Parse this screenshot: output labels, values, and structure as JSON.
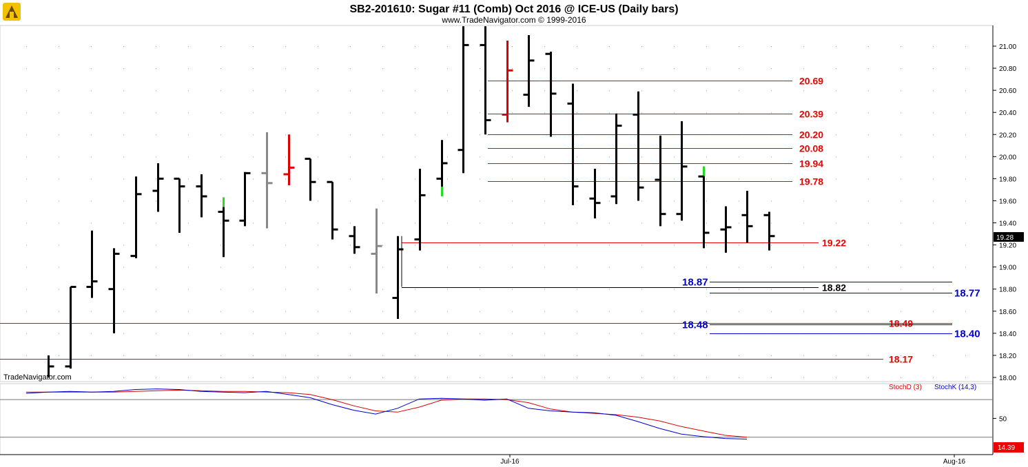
{
  "chart_data": {
    "type": "bar",
    "subtype": "ohlc",
    "title": "SB2-201610:  Sugar #11 (Comb) Oct 2016 @ ICE-US  (Daily bars)",
    "subtitle": "www.TradeNavigator.com © 1999-2016",
    "watermark": "TradeNavigator.com",
    "ylim": [
      18.0,
      21.15
    ],
    "y_ticks": [
      "21.00",
      "20.80",
      "20.60",
      "20.40",
      "20.20",
      "20.00",
      "19.80",
      "19.60",
      "19.40",
      "19.20",
      "19.00",
      "18.80",
      "18.60",
      "18.40",
      "18.20",
      "18.00"
    ],
    "x_ticks": [
      "Jul-16",
      "Aug-16"
    ],
    "last_price": "19.28",
    "grid": true,
    "bars": [
      {
        "o": null,
        "h": 18.2,
        "l": 18.0,
        "c": 18.1,
        "color": "#000000"
      },
      {
        "o": 18.1,
        "h": 18.82,
        "l": 18.08,
        "c": 18.82,
        "color": "#000000"
      },
      {
        "o": 18.82,
        "h": 19.33,
        "l": 18.72,
        "c": 18.87,
        "color": "#000000"
      },
      {
        "o": 18.8,
        "h": 19.17,
        "l": 18.4,
        "c": 19.12,
        "color": "#000000"
      },
      {
        "o": 19.1,
        "h": 19.82,
        "l": 19.08,
        "c": 19.66,
        "color": "#000000"
      },
      {
        "o": 19.69,
        "h": 19.94,
        "l": 19.5,
        "c": 19.8,
        "color": "#000000"
      },
      {
        "o": 19.8,
        "h": 19.8,
        "l": 19.31,
        "c": 19.73,
        "color": "#000000"
      },
      {
        "o": 19.73,
        "h": 19.84,
        "l": 19.45,
        "c": 19.64,
        "color": "#000000"
      },
      {
        "o": 19.5,
        "h": 19.63,
        "l": 19.09,
        "c": 19.42,
        "color": "#000000",
        "top_color": "#22dd22"
      },
      {
        "o": 19.42,
        "h": 19.86,
        "l": 19.37,
        "c": 19.85,
        "color": "#000000"
      },
      {
        "o": 19.85,
        "h": 20.22,
        "l": 19.35,
        "c": 19.76,
        "color": "#888888"
      },
      {
        "o": 19.84,
        "h": 20.2,
        "l": 19.74,
        "c": 19.9,
        "color": "#dd0000"
      },
      {
        "o": 19.98,
        "h": 19.98,
        "l": 19.6,
        "c": 19.77,
        "color": "#000000"
      },
      {
        "o": 19.77,
        "h": 19.77,
        "l": 19.25,
        "c": 19.34,
        "color": "#000000"
      },
      {
        "o": 19.28,
        "h": 19.37,
        "l": 19.12,
        "c": 19.18,
        "color": "#000000"
      },
      {
        "o": 19.12,
        "h": 19.53,
        "l": 18.76,
        "c": 19.19,
        "color": "#888888"
      },
      {
        "o": 18.72,
        "h": 19.28,
        "l": 18.53,
        "c": 19.16,
        "color": "#000000"
      },
      {
        "o": 19.25,
        "h": 19.89,
        "l": 19.15,
        "c": 19.65,
        "color": "#000000"
      },
      {
        "o": 19.8,
        "h": 20.15,
        "l": 19.64,
        "c": 19.94,
        "color": "#000000",
        "bottom_color": "#22dd22"
      },
      {
        "o": 20.06,
        "h": 21.18,
        "l": 19.85,
        "c": 21.01,
        "color": "#000000"
      },
      {
        "o": 21.01,
        "h": 21.18,
        "l": 20.2,
        "c": 20.33,
        "color": "#000000"
      },
      {
        "o": 20.38,
        "h": 21.05,
        "l": 20.31,
        "c": 20.78,
        "color": "#dd0000"
      },
      {
        "o": 20.56,
        "h": 21.1,
        "l": 20.45,
        "c": 20.87,
        "color": "#000000"
      },
      {
        "o": 20.93,
        "h": 20.95,
        "l": 20.18,
        "c": 20.57,
        "color": "#000000"
      },
      {
        "o": 20.48,
        "h": 20.66,
        "l": 19.56,
        "c": 19.73,
        "color": "#000000"
      },
      {
        "o": 19.62,
        "h": 19.89,
        "l": 19.44,
        "c": 19.58,
        "color": "#000000"
      },
      {
        "o": 19.64,
        "h": 20.39,
        "l": 19.57,
        "c": 20.28,
        "color": "#000000"
      },
      {
        "o": 20.38,
        "h": 20.59,
        "l": 19.6,
        "c": 19.72,
        "color": "#000000"
      },
      {
        "o": 19.79,
        "h": 20.19,
        "l": 19.37,
        "c": 19.48,
        "color": "#000000"
      },
      {
        "o": 19.48,
        "h": 20.32,
        "l": 19.42,
        "c": 19.91,
        "color": "#000000"
      },
      {
        "o": 19.82,
        "h": 19.91,
        "l": 19.17,
        "c": 19.31,
        "color": "#000000",
        "top_color": "#22dd22"
      },
      {
        "o": 19.34,
        "h": 19.55,
        "l": 19.13,
        "c": 19.36,
        "color": "#000000"
      },
      {
        "o": 19.47,
        "h": 19.69,
        "l": 19.22,
        "c": 19.37,
        "color": "#000000"
      },
      {
        "o": 19.47,
        "h": 19.5,
        "l": 19.15,
        "c": 19.28,
        "color": "#000000"
      }
    ],
    "levels": [
      {
        "label": "20.69",
        "value": 20.69,
        "color": "#ee0000",
        "from_bar": 20,
        "to_bar": 30
      },
      {
        "label": "20.39",
        "value": 20.39,
        "color": "#ee0000",
        "from_bar": 20,
        "to_bar": 30
      },
      {
        "label": "20.20",
        "value": 20.2,
        "color": "#ee0000",
        "from_bar": 20,
        "to_bar": 30
      },
      {
        "label": "20.08",
        "value": 20.08,
        "color": "#ee0000",
        "from_bar": 20,
        "to_bar": 30
      },
      {
        "label": "19.94",
        "value": 19.94,
        "color": "#ee0000",
        "from_bar": 20,
        "to_bar": 30
      },
      {
        "label": "19.78",
        "value": 19.78,
        "color": "#ee0000",
        "from_bar": 20,
        "to_bar": 30
      },
      {
        "label": "19.22",
        "value": 19.22,
        "color": "#ee0000",
        "from_bar": 16,
        "to_bar": 34
      },
      {
        "label": "18.87",
        "value": 18.87,
        "color": "#0000cc",
        "from_bar": 30,
        "to_bar": 38
      },
      {
        "label": "18.82",
        "value": 18.82,
        "color": "#000000",
        "from_bar": 16,
        "to_bar": 32
      },
      {
        "label": "18.77",
        "value": 18.77,
        "color": "#0000cc",
        "from_bar": 30,
        "to_bar": 38
      },
      {
        "label": "18.49",
        "value": 18.49,
        "color": "#ee0000",
        "from_bar": -2,
        "to_bar": 38
      },
      {
        "label": "18.48",
        "value": 18.48,
        "color": "#0000cc",
        "from_bar": 30,
        "to_bar": 38
      },
      {
        "label": "18.40",
        "value": 18.4,
        "color": "#0000cc",
        "from_bar": 30,
        "to_bar": 38
      },
      {
        "label": "18.17",
        "value": 18.17,
        "color": "#ee0000",
        "from_bar": -2,
        "to_bar": 36
      }
    ],
    "stochastic": {
      "legend": [
        "StochD (3)",
        "StochK (14,3)"
      ],
      "ylim": [
        0,
        100
      ],
      "y_tick": "50",
      "levels": [
        80,
        20
      ],
      "readout": "14.39",
      "series": [
        {
          "name": "StochD (3)",
          "color": "#dd0000",
          "values": [
            92,
            92,
            92,
            92,
            92,
            93,
            94,
            95,
            94,
            93,
            93,
            92,
            91,
            88,
            80,
            70,
            62,
            60,
            68,
            79,
            81,
            81,
            80,
            75,
            65,
            60,
            58,
            56,
            52,
            46,
            37,
            30,
            23,
            20
          ]
        },
        {
          "name": "StochK (14,3)",
          "color": "#0000cc",
          "values": [
            90,
            92,
            93,
            92,
            93,
            96,
            97,
            96,
            93,
            92,
            91,
            93,
            88,
            83,
            72,
            63,
            57,
            66,
            81,
            82,
            81,
            79,
            81,
            66,
            62,
            60,
            59,
            55,
            45,
            34,
            25,
            21,
            18,
            17
          ]
        }
      ]
    }
  }
}
